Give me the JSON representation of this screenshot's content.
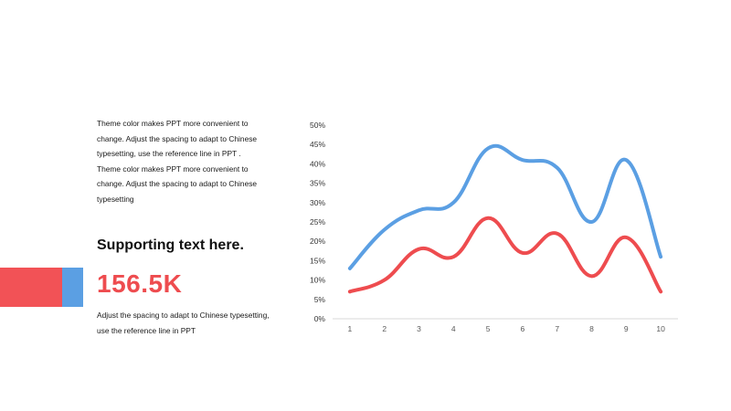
{
  "left": {
    "paragraph": "Theme color makes PPT more convenient  to change. Adjust the spacing to adapt to Chinese typesetting, use the reference line in PPT . Theme color makes PPT more convenient  to change. Adjust the spacing to adapt to Chinese  typesetting",
    "subheading": "Supporting text here.",
    "big_number": "156.5K",
    "caption": "Adjust the spacing to adapt to Chinese typesetting, use the reference line in PPT"
  },
  "colors": {
    "red": "#f25256",
    "blue": "#5b9fe3",
    "axis": "#d9d9d9",
    "tick_text": "#595959"
  },
  "chart_data": {
    "type": "line",
    "smooth": true,
    "title": "",
    "xlabel": "",
    "ylabel": "",
    "categories": [
      "1",
      "2",
      "3",
      "4",
      "5",
      "6",
      "7",
      "8",
      "9",
      "10"
    ],
    "ylim": [
      0,
      50
    ],
    "yticks": [
      "0%",
      "5%",
      "10%",
      "15%",
      "20%",
      "25%",
      "30%",
      "35%",
      "40%",
      "45%",
      "50%"
    ],
    "grid": false,
    "legend": "none",
    "series": [
      {
        "color": "#5b9fe3",
        "values": [
          13,
          23,
          28,
          30,
          44,
          41,
          39,
          25,
          41,
          16
        ]
      },
      {
        "color": "#ee4c4f",
        "values": [
          7,
          10,
          18,
          16,
          26,
          17,
          22,
          11,
          21,
          7
        ]
      }
    ]
  }
}
